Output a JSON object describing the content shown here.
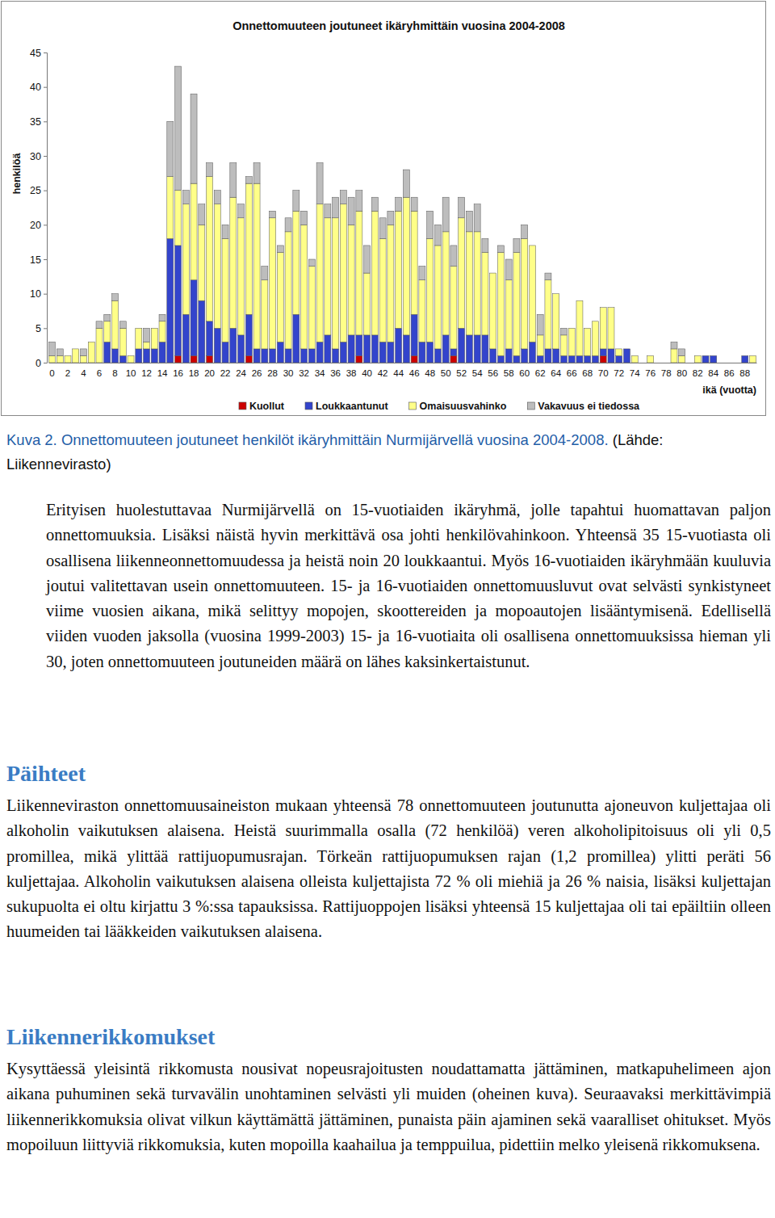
{
  "chart_data": {
    "type": "bar",
    "title": "Onnettomuuteen joutuneet ikäryhmittäin vuosina 2004-2008",
    "x_label": "ikä (vuotta)",
    "y_label": "henkilöä",
    "categories": [
      "0",
      null,
      "2",
      null,
      "4",
      null,
      "6",
      null,
      "8",
      null,
      "10",
      null,
      "12",
      null,
      "14",
      null,
      "16",
      null,
      "18",
      null,
      "20",
      null,
      "22",
      null,
      "24",
      null,
      "26",
      null,
      "28",
      null,
      "30",
      null,
      "32",
      null,
      "34",
      null,
      "36",
      null,
      "38",
      null,
      "40",
      null,
      "42",
      null,
      "44",
      null,
      "46",
      null,
      "48",
      null,
      "50",
      null,
      "52",
      null,
      "54",
      null,
      "56",
      null,
      "58",
      null,
      "60",
      null,
      "62",
      null,
      "64",
      null,
      "66",
      null,
      "68",
      null,
      "70",
      null,
      "72",
      null,
      "74",
      null,
      "76",
      null,
      "78",
      null,
      "80",
      null,
      "82",
      null,
      "84",
      null,
      "86",
      null,
      "88",
      null
    ],
    "series": [
      {
        "name": "Kuollut",
        "color": "#cc0000",
        "values": [
          0,
          0,
          0,
          0,
          0,
          0,
          0,
          0,
          0,
          0,
          0,
          0,
          0,
          0,
          0,
          0,
          1,
          0,
          1,
          0,
          1,
          0,
          0,
          0,
          0,
          1,
          0,
          0,
          0,
          0,
          0,
          0,
          0,
          0,
          0,
          0,
          0,
          0,
          0,
          1,
          0,
          0,
          0,
          0,
          0,
          0,
          1,
          0,
          0,
          0,
          0,
          1,
          0,
          0,
          0,
          0,
          0,
          0,
          0,
          0,
          0,
          0,
          0,
          0,
          0,
          0,
          0,
          0,
          0,
          0,
          1,
          0,
          0,
          0,
          0,
          0,
          0,
          0,
          0,
          0,
          0,
          0,
          0,
          0,
          0,
          0,
          0,
          0,
          0,
          0
        ]
      },
      {
        "name": "Loukkaantunut",
        "color": "#3344cc",
        "values": [
          0,
          0,
          0,
          0,
          0,
          0,
          0,
          3,
          2,
          1,
          0,
          2,
          2,
          2,
          3,
          18,
          16,
          7,
          11,
          9,
          5,
          5,
          3,
          5,
          4,
          6,
          2,
          2,
          2,
          3,
          2,
          7,
          2,
          2,
          3,
          4,
          2,
          3,
          4,
          3,
          4,
          4,
          3,
          3,
          5,
          4,
          6,
          3,
          3,
          2,
          4,
          1,
          5,
          4,
          4,
          4,
          2,
          1,
          2,
          1,
          2,
          3,
          1,
          2,
          2,
          1,
          1,
          1,
          1,
          1,
          1,
          2,
          1,
          2,
          0,
          0,
          0,
          0,
          0,
          0,
          0,
          0,
          0,
          1,
          1,
          0,
          0,
          0,
          1,
          0
        ]
      },
      {
        "name": "Omaisuusvahinko",
        "color": "#ffff88",
        "values": [
          1,
          1,
          1,
          2,
          1,
          3,
          5,
          3,
          7,
          4,
          1,
          3,
          1,
          3,
          3,
          9,
          8,
          16,
          14,
          11,
          21,
          18,
          15,
          19,
          17,
          19,
          24,
          10,
          19,
          13,
          17,
          15,
          18,
          12,
          20,
          17,
          19,
          20,
          16,
          18,
          9,
          18,
          15,
          17,
          17,
          20,
          15,
          9,
          15,
          15,
          15,
          12,
          16,
          15,
          15,
          12,
          11,
          15,
          10,
          15,
          16,
          14,
          3,
          10,
          8,
          3,
          4,
          8,
          4,
          5,
          6,
          6,
          1,
          0,
          1,
          0,
          1,
          0,
          0,
          2,
          1,
          0,
          1,
          0,
          0,
          0,
          0,
          0,
          0,
          1
        ]
      },
      {
        "name": "Vakavuus ei tiedossa",
        "color": "#bdbdbd",
        "values": [
          2,
          1,
          0,
          0,
          1,
          0,
          1,
          1,
          1,
          1,
          0,
          0,
          2,
          0,
          1,
          8,
          18,
          2,
          13,
          3,
          2,
          2,
          2,
          5,
          2,
          1,
          3,
          2,
          1,
          1,
          2,
          3,
          2,
          1,
          6,
          2,
          3,
          2,
          4,
          3,
          4,
          2,
          3,
          2,
          2,
          4,
          2,
          2,
          4,
          3,
          5,
          3,
          3,
          3,
          4,
          2,
          0,
          1,
          3,
          2,
          2,
          0,
          3,
          1,
          0,
          1,
          0,
          0,
          0,
          0,
          0,
          0,
          0,
          0,
          0,
          0,
          0,
          0,
          0,
          1,
          1,
          0,
          0,
          0,
          0,
          0,
          0,
          0,
          0,
          0
        ]
      }
    ],
    "ylim": [
      0,
      45
    ],
    "yticks": [
      0,
      5,
      10,
      15,
      20,
      25,
      30,
      35,
      40,
      45
    ],
    "stacked": true,
    "grid": false,
    "legend": "bottom"
  },
  "document": {
    "caption": {
      "text": "Kuva 2. Onnettomuuteen joutuneet henkilöt ikäryhmittäin Nurmijärvellä vuosina 2004-2008.",
      "source": "(Lähde: Liikennevirasto)"
    },
    "sections": [
      {
        "paragraphs": [
          "Erityisen huolestuttavaa Nurmijärvellä on 15-vuotiaiden ikäryhmä, jolle tapahtui huomattavan paljon onnettomuuksia. Lisäksi näistä hyvin merkittävä osa johti henkilövahinkoon. Yhteensä 35 15-vuotiasta oli osallisena liikenneonnettomuudessa ja heistä noin 20 loukkaantui. Myös 16-vuotiaiden ikäryhmään kuuluvia joutui valitettavan usein onnettomuuteen. 15- ja 16-vuotiaiden onnettomuusluvut ovat selvästi synkistyneet viime vuosien aikana, mikä selittyy mopojen, skoottereiden ja mopoautojen lisääntymisenä. Edellisellä viiden vuoden jaksolla (vuosina 1999-2003) 15- ja 16-vuotiaita oli osallisena onnettomuuksissa hieman yli 30, joten onnettomuuteen joutuneiden määrä on lähes kaksinkertaistunut."
        ]
      },
      {
        "heading": "Päihteet",
        "paragraphs": [
          "Liikenneviraston onnettomuusaineiston mukaan yhteensä 78 onnettomuuteen joutunutta ajoneuvon kuljettajaa oli alkoholin vaikutuksen alaisena. Heistä suurimmalla osalla (72 henkilöä) veren alkoholipitoisuus oli yli 0,5 promillea, mikä ylittää rattijuopumusrajan. Törkeän rattijuopumuksen rajan (1,2 promillea) ylitti peräti 56 kuljettajaa. Alkoholin vaikutuksen alaisena olleista kuljettajista 72 % oli miehiä ja 26 % naisia, lisäksi kuljettajan sukupuolta ei oltu kirjattu 3 %:ssa tapauksissa. Rattijuoppojen lisäksi yhteensä 15 kuljettajaa oli tai epäiltiin olleen huumeiden tai lääkkeiden vaikutuksen alaisena."
        ]
      },
      {
        "heading": "Liikennerikkomukset",
        "paragraphs": [
          "Kysyttäessä yleisintä rikkomusta nousivat nopeusrajoitusten noudattamatta jättäminen, matkapuhelimeen ajon aikana puhuminen sekä turvavälin unohtaminen selvästi yli muiden (oheinen kuva). Seuraavaksi merkittävimpiä liikennerikkomuksia olivat vilkun käyttämättä jättäminen, punaista päin ajaminen sekä vaaralliset ohitukset. Myös mopoiluun liittyviä rikkomuksia, kuten mopoilla kaahailua ja temppuilua, pidettiin melko yleisenä rikkomuksena."
        ]
      }
    ]
  }
}
